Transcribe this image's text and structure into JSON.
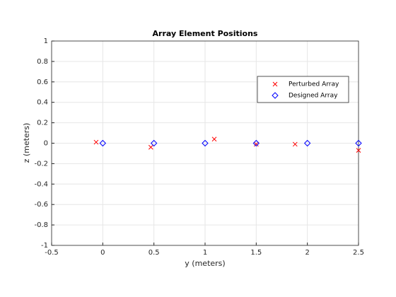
{
  "chart_data": {
    "type": "scatter",
    "title": "Array Element Positions",
    "x_label": "y (meters)",
    "y_label": "z (meters)",
    "xlim": [
      -0.5,
      2.5
    ],
    "xticks": [
      -0.5,
      0,
      0.5,
      1,
      1.5,
      2,
      2.5
    ],
    "ylim": [
      -1,
      1
    ],
    "yticks": [
      -1,
      -0.8,
      -0.6,
      -0.4,
      -0.2,
      0,
      0.2,
      0.4,
      0.6,
      0.8,
      1
    ],
    "grid": true,
    "legend": "upper right",
    "series": [
      {
        "name": "Perturbed Array",
        "color": "#ff0000",
        "marker": "x",
        "x": [
          -0.065,
          0.47,
          1.09,
          1.5,
          1.88,
          2.5
        ],
        "values": [
          0.01,
          -0.04,
          0.04,
          -0.01,
          -0.01,
          -0.07
        ]
      },
      {
        "name": "Designed Array",
        "color": "#0000ff",
        "marker": "diamond",
        "x": [
          0,
          0.5,
          1,
          1.5,
          2,
          2.5
        ],
        "values": [
          0,
          0,
          0,
          0,
          0,
          0
        ]
      }
    ]
  }
}
